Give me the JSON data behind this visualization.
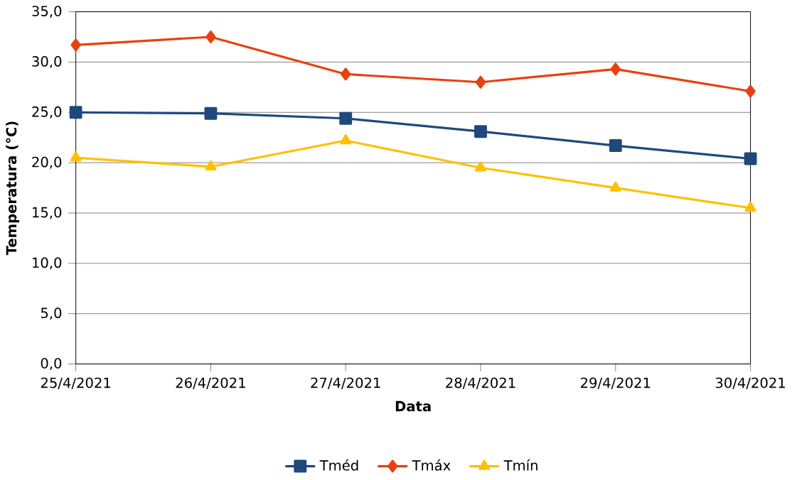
{
  "chart_data": {
    "type": "line",
    "xlabel": "Data",
    "ylabel": "Temperatura (°C)",
    "categories": [
      "25/4/2021",
      "26/4/2021",
      "27/4/2021",
      "28/4/2021",
      "29/4/2021",
      "30/4/2021"
    ],
    "series": [
      {
        "name": "Tméd",
        "color": "#1f497d",
        "marker": "square",
        "values": [
          25.0,
          24.9,
          24.4,
          23.1,
          21.7,
          20.4
        ]
      },
      {
        "name": "Tmáx",
        "color": "#e8400e",
        "marker": "diamond",
        "values": [
          31.7,
          32.5,
          28.8,
          28.0,
          29.3,
          27.1
        ]
      },
      {
        "name": "Tmín",
        "color": "#ffc000",
        "marker": "triangle",
        "values": [
          20.5,
          19.6,
          22.2,
          19.5,
          17.5,
          15.5
        ]
      }
    ],
    "ylim": [
      0,
      35
    ],
    "yticks": [
      {
        "value": 0,
        "label": "0,0"
      },
      {
        "value": 5,
        "label": "5,0"
      },
      {
        "value": 10,
        "label": "10,0"
      },
      {
        "value": 15,
        "label": "15,0"
      },
      {
        "value": 20,
        "label": "20,0"
      },
      {
        "value": 25,
        "label": "25,0"
      },
      {
        "value": 30,
        "label": "30,0"
      },
      {
        "value": 35,
        "label": "35,0"
      }
    ],
    "grid": "y",
    "legend": "bottom",
    "line_style": "solid"
  }
}
